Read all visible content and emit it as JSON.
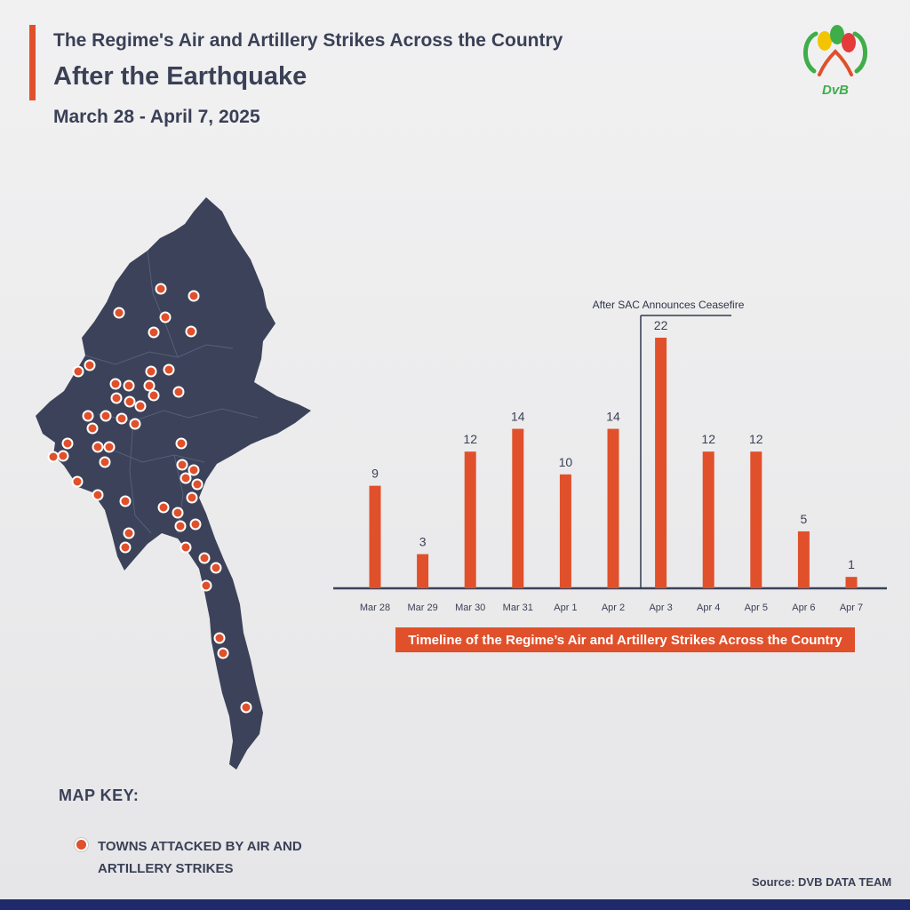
{
  "header": {
    "title_line1": "The Regime's Air and Artillery Strikes Across the Country",
    "title_line2": "After the Earthquake",
    "date_range": "March 28 - April 7, 2025"
  },
  "logo": {
    "text": "DvB",
    "icon": "dvb-logo"
  },
  "colors": {
    "accent": "#e0502b",
    "map_fill": "#3b4259",
    "text": "#3a4056",
    "bottom_bar": "#1f2a6b"
  },
  "map_key": {
    "title": "MAP KEY:",
    "items": [
      {
        "icon": "red-dot",
        "label": "TOWNS ATTACKED BY AIR AND ARTILLERY STRIKES"
      }
    ]
  },
  "chart_data": {
    "type": "bar",
    "categories": [
      "Mar 28",
      "Mar 29",
      "Mar 30",
      "Mar 31",
      "Apr 1",
      "Apr 2",
      "Apr 3",
      "Apr 4",
      "Apr 5",
      "Apr 6",
      "Apr 7"
    ],
    "values": [
      9,
      3,
      12,
      14,
      10,
      14,
      22,
      12,
      12,
      5,
      1
    ],
    "title": "Timeline of the Regime’s Air and Artillery Strikes Across the Country",
    "annotation": {
      "text": "After SAC Announces Ceasefire",
      "between": [
        "Apr 2",
        "Apr 3"
      ]
    },
    "ylim": [
      0,
      22
    ],
    "grid": false,
    "bar_color": "#e0502b"
  },
  "source": "Source: DVB DATA TEAM"
}
